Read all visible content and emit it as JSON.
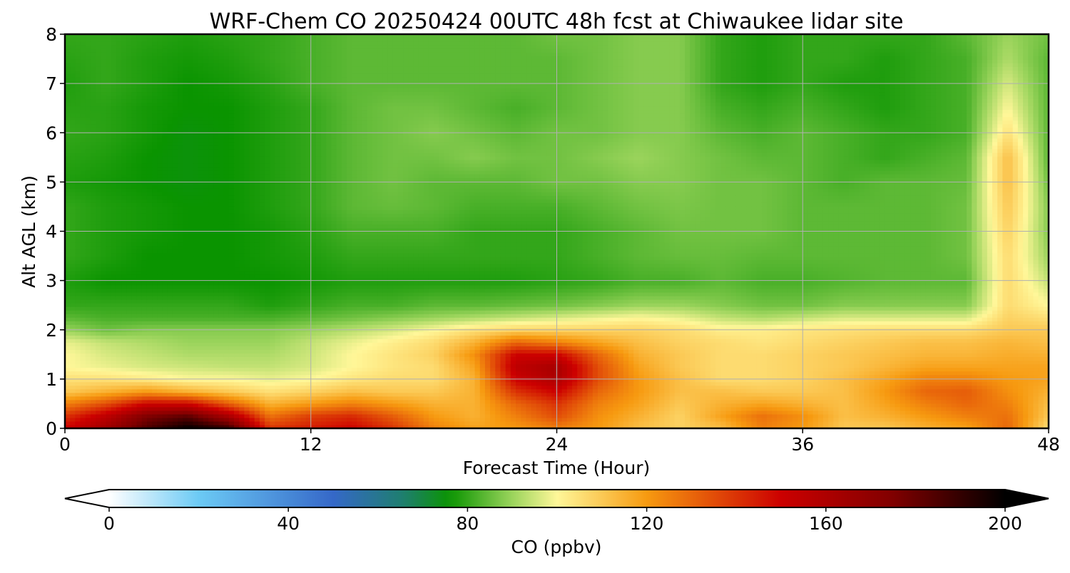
{
  "chart_data": {
    "type": "heatmap",
    "title": "WRF-Chem CO  20250424 00UTC 48h fcst at Chiwaukee lidar site",
    "xlabel": "Forecast Time (Hour)",
    "ylabel": "Alt AGL (km)",
    "xlim": [
      0,
      48
    ],
    "ylim": [
      0,
      8
    ],
    "xticks": [
      0,
      12,
      24,
      36,
      48
    ],
    "yticks": [
      0,
      1,
      2,
      3,
      4,
      5,
      6,
      7,
      8
    ],
    "grid": true,
    "x": [
      0,
      2,
      4,
      6,
      8,
      10,
      12,
      14,
      16,
      18,
      20,
      22,
      24,
      26,
      28,
      30,
      32,
      34,
      36,
      38,
      40,
      42,
      44,
      46,
      48
    ],
    "y": [
      0,
      0.25,
      0.5,
      0.75,
      1,
      1.25,
      1.5,
      1.75,
      2,
      2.25,
      2.5,
      3,
      3.5,
      4,
      4.5,
      5,
      5.5,
      6,
      6.5,
      7,
      7.5,
      8
    ],
    "z": [
      [
        150,
        165,
        185,
        200,
        190,
        140,
        145,
        150,
        140,
        125,
        118,
        120,
        125,
        120,
        112,
        108,
        112,
        125,
        120,
        110,
        110,
        115,
        118,
        130,
        105
      ],
      [
        140,
        155,
        175,
        182,
        162,
        128,
        138,
        142,
        132,
        120,
        115,
        125,
        135,
        122,
        115,
        108,
        118,
        128,
        122,
        112,
        115,
        120,
        125,
        128,
        110
      ],
      [
        125,
        135,
        150,
        150,
        132,
        115,
        120,
        125,
        120,
        115,
        115,
        130,
        140,
        125,
        118,
        110,
        115,
        118,
        115,
        112,
        118,
        125,
        130,
        125,
        112
      ],
      [
        110,
        115,
        120,
        115,
        110,
        105,
        108,
        112,
        110,
        110,
        115,
        140,
        150,
        130,
        120,
        112,
        112,
        110,
        110,
        112,
        120,
        130,
        132,
        122,
        115
      ],
      [
        105,
        105,
        103,
        100,
        100,
        98,
        100,
        104,
        106,
        106,
        115,
        150,
        160,
        135,
        120,
        112,
        106,
        106,
        108,
        112,
        118,
        125,
        125,
        120,
        118
      ],
      [
        100,
        98,
        96,
        95,
        94,
        94,
        96,
        100,
        104,
        106,
        118,
        155,
        162,
        135,
        118,
        110,
        106,
        106,
        108,
        110,
        114,
        118,
        118,
        118,
        118
      ],
      [
        100,
        96,
        94,
        92,
        92,
        92,
        95,
        100,
        104,
        108,
        122,
        150,
        150,
        130,
        115,
        110,
        106,
        106,
        108,
        110,
        112,
        114,
        114,
        116,
        115
      ],
      [
        98,
        94,
        92,
        90,
        90,
        90,
        94,
        98,
        102,
        106,
        115,
        130,
        125,
        118,
        112,
        108,
        106,
        104,
        106,
        108,
        110,
        112,
        112,
        114,
        112
      ],
      [
        90,
        86,
        88,
        88,
        88,
        88,
        90,
        93,
        96,
        100,
        105,
        108,
        108,
        108,
        108,
        106,
        102,
        102,
        104,
        105,
        106,
        106,
        106,
        110,
        110
      ],
      [
        84,
        82,
        82,
        82,
        82,
        82,
        84,
        86,
        88,
        90,
        92,
        94,
        96,
        98,
        100,
        98,
        94,
        92,
        94,
        96,
        96,
        96,
        96,
        108,
        105
      ],
      [
        80,
        80,
        80,
        80,
        80,
        78,
        80,
        82,
        82,
        84,
        84,
        85,
        86,
        88,
        90,
        90,
        88,
        86,
        86,
        88,
        88,
        88,
        88,
        106,
        100
      ],
      [
        78,
        76,
        76,
        76,
        76,
        76,
        77,
        78,
        78,
        78,
        78,
        78,
        79,
        80,
        82,
        82,
        84,
        82,
        82,
        83,
        84,
        84,
        84,
        106,
        94
      ],
      [
        80,
        78,
        76,
        76,
        76,
        77,
        78,
        80,
        80,
        80,
        80,
        80,
        80,
        82,
        84,
        85,
        85,
        84,
        84,
        84,
        84,
        84,
        86,
        106,
        90
      ],
      [
        80,
        78,
        77,
        76,
        76,
        77,
        79,
        82,
        82,
        82,
        80,
        80,
        80,
        82,
        84,
        86,
        86,
        86,
        84,
        84,
        84,
        84,
        86,
        108,
        88
      ],
      [
        80,
        78,
        77,
        76,
        76,
        78,
        80,
        84,
        85,
        84,
        82,
        82,
        82,
        84,
        86,
        87,
        86,
        86,
        84,
        84,
        84,
        84,
        86,
        110,
        88
      ],
      [
        78,
        77,
        76,
        75,
        76,
        78,
        80,
        84,
        86,
        84,
        84,
        84,
        86,
        86,
        88,
        88,
        86,
        86,
        84,
        82,
        84,
        84,
        85,
        112,
        86
      ],
      [
        79,
        78,
        76,
        75,
        76,
        78,
        80,
        84,
        86,
        86,
        88,
        86,
        86,
        88,
        90,
        88,
        86,
        84,
        84,
        82,
        80,
        82,
        84,
        112,
        84
      ],
      [
        80,
        79,
        77,
        75,
        76,
        78,
        80,
        84,
        86,
        88,
        86,
        84,
        86,
        86,
        88,
        88,
        84,
        82,
        84,
        82,
        80,
        80,
        82,
        105,
        84
      ],
      [
        79,
        79,
        77,
        76,
        76,
        78,
        80,
        84,
        86,
        86,
        84,
        82,
        84,
        86,
        88,
        88,
        82,
        80,
        82,
        80,
        78,
        80,
        82,
        100,
        84
      ],
      [
        78,
        80,
        78,
        76,
        77,
        79,
        82,
        84,
        84,
        84,
        84,
        84,
        84,
        86,
        88,
        88,
        80,
        78,
        80,
        78,
        78,
        80,
        82,
        96,
        84
      ],
      [
        79,
        80,
        78,
        77,
        78,
        80,
        82,
        84,
        84,
        84,
        84,
        84,
        84,
        86,
        88,
        88,
        80,
        78,
        80,
        80,
        78,
        80,
        82,
        92,
        84
      ],
      [
        80,
        80,
        79,
        78,
        79,
        80,
        82,
        84,
        84,
        84,
        84,
        84,
        86,
        86,
        88,
        88,
        80,
        78,
        80,
        80,
        80,
        80,
        84,
        90,
        86
      ]
    ],
    "colorbar": {
      "label": "CO  (ppbv)",
      "min": 0,
      "max": 200,
      "ticks": [
        0,
        40,
        80,
        120,
        160,
        200
      ],
      "extend": "both",
      "color_stops": [
        {
          "v": 0,
          "c": "#ffffff"
        },
        {
          "v": 20,
          "c": "#6ccaf5"
        },
        {
          "v": 50,
          "c": "#3568c8"
        },
        {
          "v": 66,
          "c": "#1e7f6c"
        },
        {
          "v": 76,
          "c": "#0a9400"
        },
        {
          "v": 90,
          "c": "#9bd45c"
        },
        {
          "v": 100,
          "c": "#fff799"
        },
        {
          "v": 120,
          "c": "#f79a10"
        },
        {
          "v": 150,
          "c": "#cc0000"
        },
        {
          "v": 175,
          "c": "#800000"
        },
        {
          "v": 200,
          "c": "#000000"
        }
      ]
    }
  }
}
